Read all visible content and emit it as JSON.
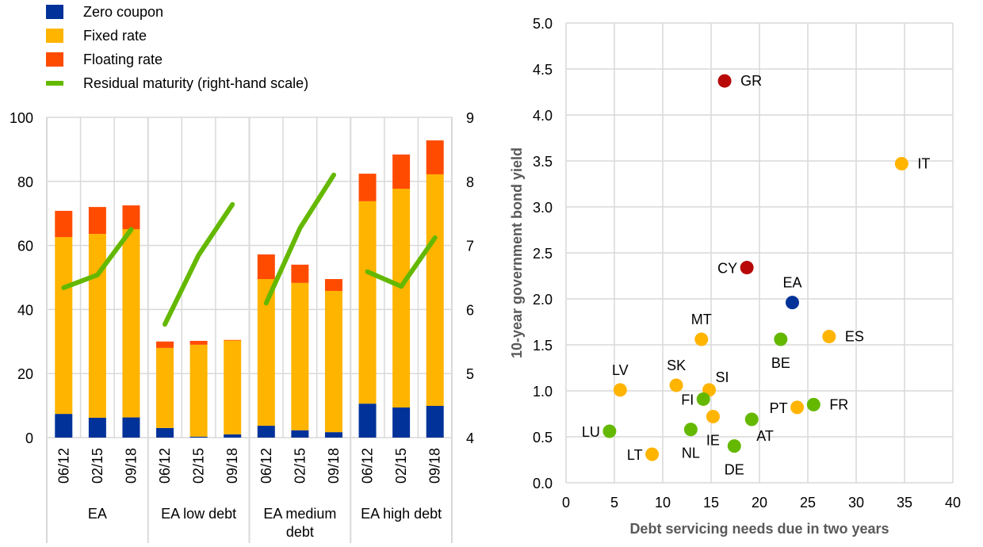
{
  "colors": {
    "zero_coupon": "#003299",
    "fixed_rate": "#FFB400",
    "floating_rate": "#FF4B00",
    "residual_maturity": "#65B800",
    "grid": "#d9d9d9",
    "dot_red": "#B80808",
    "dot_blue": "#003299",
    "dot_green": "#65B800",
    "dot_yellow": "#FFB400",
    "axis_title": "#595959"
  },
  "chart_data": [
    {
      "type": "bar",
      "stacked": true,
      "title": "",
      "legend": {
        "placement": "top-left",
        "entries": [
          {
            "key": "zero_coupon",
            "label": "Zero coupon",
            "shape": "square"
          },
          {
            "key": "fixed_rate",
            "label": "Fixed rate",
            "shape": "square"
          },
          {
            "key": "floating_rate",
            "label": "Floating rate",
            "shape": "square"
          },
          {
            "key": "residual_maturity",
            "label": "Residual maturity (right-hand scale)",
            "shape": "line"
          }
        ]
      },
      "groups": [
        {
          "label": "EA",
          "categories": [
            "06/12",
            "02/15",
            "09/18"
          ]
        },
        {
          "label": "EA low debt",
          "categories": [
            "06/12",
            "02/15",
            "09/18"
          ]
        },
        {
          "label": "EA medium debt",
          "label_lines": [
            "EA medium",
            "debt"
          ],
          "categories": [
            "06/12",
            "02/15",
            "09/18"
          ]
        },
        {
          "label": "EA high debt",
          "categories": [
            "06/12",
            "02/15",
            "09/18"
          ]
        }
      ],
      "series": [
        {
          "key": "zero_coupon",
          "name": "Zero coupon",
          "axis": "left",
          "values": [
            7.4,
            6.2,
            6.3,
            3.0,
            0.3,
            1.0,
            3.7,
            2.3,
            1.7,
            10.6,
            9.4,
            9.9
          ]
        },
        {
          "key": "fixed_rate",
          "name": "Fixed rate",
          "axis": "left",
          "values": [
            55.2,
            57.4,
            58.8,
            25.0,
            28.7,
            29.3,
            45.8,
            46.0,
            44.1,
            63.2,
            68.3,
            72.3
          ]
        },
        {
          "key": "floating_rate",
          "name": "Floating rate",
          "axis": "left",
          "values": [
            8.2,
            8.4,
            7.4,
            2.0,
            1.2,
            0.2,
            7.7,
            5.7,
            3.7,
            8.6,
            10.7,
            10.6
          ]
        },
        {
          "key": "residual_maturity",
          "name": "Residual maturity (right-hand scale)",
          "axis": "right",
          "type": "line",
          "values": [
            6.34,
            6.54,
            7.25,
            5.77,
            6.85,
            7.64,
            6.1,
            7.27,
            8.1,
            6.59,
            6.36,
            7.12
          ]
        }
      ],
      "y_left": {
        "min": 0,
        "max": 100,
        "ticks": [
          "0",
          "20",
          "40",
          "60",
          "80",
          "100"
        ]
      },
      "y_right": {
        "min": 4,
        "max": 9,
        "ticks": [
          "4",
          "5",
          "6",
          "7",
          "8",
          "9"
        ]
      },
      "grid": true
    },
    {
      "type": "scatter",
      "title": "",
      "xlabel": "Debt servicing needs due in two years",
      "ylabel": "10-year government bond yield",
      "xlim": [
        0,
        40
      ],
      "ylim": [
        0,
        5.0
      ],
      "x_ticks": [
        "0",
        "5",
        "10",
        "15",
        "20",
        "25",
        "30",
        "35",
        "40"
      ],
      "y_ticks": [
        "0.0",
        "0.5",
        "1.0",
        "1.5",
        "2.0",
        "2.5",
        "3.0",
        "3.5",
        "4.0",
        "4.5",
        "5.0"
      ],
      "grid": true,
      "points": [
        {
          "label": "GR",
          "x": 16.4,
          "y": 4.37,
          "color": "red",
          "label_pos": "right"
        },
        {
          "label": "IT",
          "x": 34.7,
          "y": 3.47,
          "color": "yellow",
          "label_pos": "right"
        },
        {
          "label": "CY",
          "x": 18.7,
          "y": 2.34,
          "color": "red",
          "label_pos": "left"
        },
        {
          "label": "EA",
          "x": 23.4,
          "y": 1.96,
          "color": "blue",
          "label_pos": "top"
        },
        {
          "label": "MT",
          "x": 14.0,
          "y": 1.56,
          "color": "yellow",
          "label_pos": "top"
        },
        {
          "label": "BE",
          "x": 22.2,
          "y": 1.56,
          "color": "green",
          "label_pos": "bottom"
        },
        {
          "label": "ES",
          "x": 27.2,
          "y": 1.59,
          "color": "yellow",
          "label_pos": "right"
        },
        {
          "label": "LV",
          "x": 5.6,
          "y": 1.01,
          "color": "yellow",
          "label_pos": "top"
        },
        {
          "label": "SK",
          "x": 11.4,
          "y": 1.06,
          "color": "yellow",
          "label_pos": "top"
        },
        {
          "label": "SI",
          "x": 14.8,
          "y": 1.01,
          "color": "yellow",
          "label_pos": "topright"
        },
        {
          "label": "FI",
          "x": 14.2,
          "y": 0.91,
          "color": "green",
          "label_pos": "left"
        },
        {
          "label": "IE",
          "x": 15.2,
          "y": 0.72,
          "color": "yellow",
          "label_pos": "bottom"
        },
        {
          "label": "AT",
          "x": 19.2,
          "y": 0.69,
          "color": "green",
          "label_pos": "bottomright"
        },
        {
          "label": "PT",
          "x": 23.9,
          "y": 0.82,
          "color": "yellow",
          "label_pos": "left"
        },
        {
          "label": "FR",
          "x": 25.6,
          "y": 0.85,
          "color": "green",
          "label_pos": "right"
        },
        {
          "label": "LU",
          "x": 4.5,
          "y": 0.56,
          "color": "green",
          "label_pos": "left"
        },
        {
          "label": "NL",
          "x": 12.9,
          "y": 0.58,
          "color": "green",
          "label_pos": "bottom"
        },
        {
          "label": "DE",
          "x": 17.4,
          "y": 0.4,
          "color": "green",
          "label_pos": "bottom"
        },
        {
          "label": "LT",
          "x": 8.9,
          "y": 0.31,
          "color": "yellow",
          "label_pos": "left"
        }
      ]
    }
  ]
}
